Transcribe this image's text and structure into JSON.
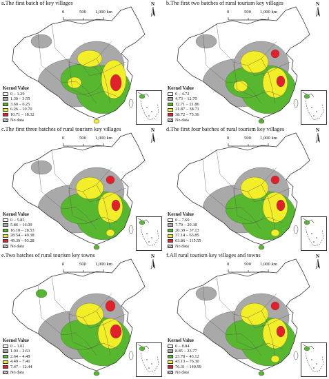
{
  "panels": [
    {
      "title": "a.The first batch of key villages",
      "legend_title": "Kernel Value",
      "classes": [
        "0 – 1.29",
        "1.30 – 3.59",
        "3.60 – 6.25",
        "6.26 – 10.70",
        "10.71 – 18.32"
      ],
      "nodata": "No data"
    },
    {
      "title": "b.The first two batches of rural tourism key villages",
      "legend_title": "Kernel Value",
      "classes": [
        "0 – 4.72",
        "4.73 – 12.70",
        "12.71 – 21.86",
        "21.87 – 38.71",
        "38.72 – 75.36"
      ],
      "nodata": "No data"
    },
    {
      "title": "c.The first three batches of rural tourism key villages",
      "legend_title": "Kernel Value",
      "classes": [
        "0 – 5.85",
        "5.86 – 16.09",
        "16.10 – 28.53",
        "28.54 – 49.38",
        "49.39 – 93.28"
      ],
      "nodata": "No data"
    },
    {
      "title": "d.The first four batches of rural tourism key villages",
      "legend_title": "Kernel Value",
      "classes": [
        "0 – 7.69",
        "7.70 – 20.38",
        "20.39 – 37.13",
        "37.14 – 63.85",
        "63.86 – 115.55"
      ],
      "nodata": "No data"
    },
    {
      "title": "e.Two batches of rural tourism key towns",
      "legend_title": "Kernel Value",
      "classes": [
        "0 – 1.02",
        "1.03 – 2.63",
        "2.64 – 4.48",
        "4.49 – 7.46",
        "7.47 – 12.44"
      ],
      "nodata": "No data"
    },
    {
      "title": "f.All rural tourism key villages and towns",
      "legend_title": "Kernel Value",
      "classes": [
        "0 – 8.84",
        "8.85 – 23.77",
        "23.78 – 43.12",
        "43.13 – 76.30",
        "76.31 – 140.99"
      ],
      "nodata": "No data"
    }
  ],
  "scale": {
    "zero": "0",
    "mid": "500",
    "end": "1,000 km"
  },
  "north": "N",
  "colors": {
    "c0": "#ffffff",
    "c1": "#a9a9a9",
    "c2": "#57b82f",
    "c3": "#f2ee28",
    "c4": "#e0202b",
    "boundary": "#333333"
  }
}
